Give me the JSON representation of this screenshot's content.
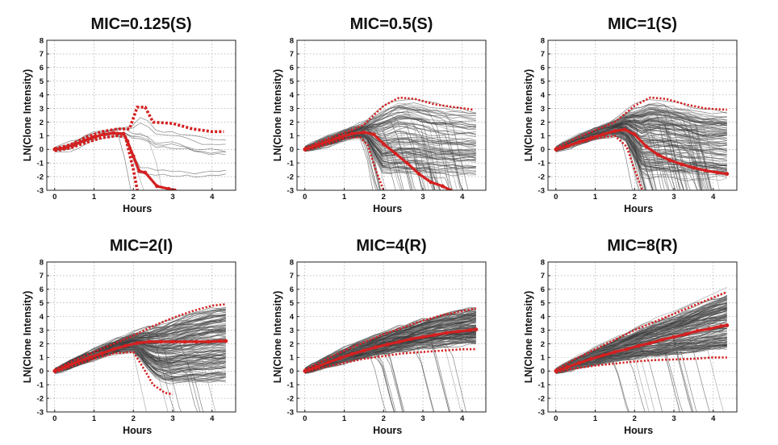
{
  "chart_data": [
    {
      "type": "line",
      "title": "MIC=0.125(S)",
      "xlabel": "Hours",
      "ylabel": "LN(Clone Intensity)",
      "xlim": [
        -0.2,
        4.6
      ],
      "ylim": [
        -3,
        8
      ],
      "xticks": [
        "0",
        "1",
        "2",
        "3",
        "4"
      ],
      "yticks": [
        "-3",
        "-2",
        "-1",
        "0",
        "1",
        "2",
        "3",
        "4",
        "5",
        "6",
        "7",
        "8"
      ],
      "grid": true,
      "clone_count": 10,
      "mean": {
        "x": [
          0,
          0.25,
          0.5,
          0.75,
          1.0,
          1.25,
          1.5,
          1.75,
          1.85,
          2.0,
          2.15,
          2.3,
          2.6,
          2.9,
          3.05
        ],
        "y": [
          0,
          0.1,
          0.35,
          0.65,
          0.9,
          1.1,
          1.2,
          1.15,
          0.6,
          -0.5,
          -1.6,
          -1.7,
          -2.7,
          -2.9,
          -3.0
        ]
      },
      "upper_envelope": {
        "x": [
          0,
          0.4,
          0.8,
          1.2,
          1.6,
          1.9,
          2.1,
          2.3,
          2.5,
          3.0,
          3.5,
          4.0,
          4.3
        ],
        "y": [
          0.05,
          0.35,
          0.9,
          1.3,
          1.5,
          1.5,
          3.1,
          3.1,
          2.0,
          1.9,
          1.5,
          1.3,
          1.3
        ]
      },
      "lower_envelope": {
        "x": [
          0,
          0.4,
          0.8,
          1.2,
          1.6,
          1.8,
          2.0,
          2.1
        ],
        "y": [
          -0.1,
          0.1,
          0.5,
          0.85,
          1.0,
          0.9,
          -1.5,
          -3.0
        ]
      }
    },
    {
      "type": "line",
      "title": "MIC=0.5(S)",
      "xlabel": "Hours",
      "ylabel": "LN(Clone Intensity)",
      "xlim": [
        -0.2,
        4.6
      ],
      "ylim": [
        -3,
        8
      ],
      "xticks": [
        "0",
        "1",
        "2",
        "3",
        "4"
      ],
      "yticks": [
        "-3",
        "-2",
        "-1",
        "0",
        "1",
        "2",
        "3",
        "4",
        "5",
        "6",
        "7",
        "8"
      ],
      "grid": true,
      "clone_count": 120,
      "mean": {
        "x": [
          0,
          0.3,
          0.6,
          0.9,
          1.2,
          1.5,
          1.75,
          2.0,
          2.3,
          2.6,
          2.9,
          3.2,
          3.5,
          3.7
        ],
        "y": [
          0,
          0.3,
          0.6,
          0.9,
          1.15,
          1.25,
          1.1,
          0.4,
          -0.3,
          -1.0,
          -1.8,
          -2.4,
          -2.7,
          -3.0
        ]
      },
      "upper_envelope": {
        "x": [
          0,
          0.5,
          1.0,
          1.5,
          2.0,
          2.4,
          2.8,
          3.3,
          3.8,
          4.3
        ],
        "y": [
          0.1,
          0.7,
          1.2,
          1.8,
          3.2,
          3.8,
          3.7,
          3.3,
          3.1,
          2.9
        ]
      },
      "lower_envelope": {
        "x": [
          0,
          0.5,
          1.0,
          1.4,
          1.6,
          1.8,
          2.0
        ],
        "y": [
          -0.1,
          0.3,
          0.8,
          0.9,
          0.3,
          -1.5,
          -3.0
        ]
      }
    },
    {
      "type": "line",
      "title": "MIC=1(S)",
      "xlabel": "Hours",
      "ylabel": "LN(Clone Intensity)",
      "xlim": [
        -0.2,
        4.6
      ],
      "ylim": [
        -3,
        8
      ],
      "xticks": [
        "0",
        "1",
        "2",
        "3",
        "4"
      ],
      "yticks": [
        "-3",
        "-2",
        "-1",
        "0",
        "1",
        "2",
        "3",
        "4",
        "5",
        "6",
        "7",
        "8"
      ],
      "grid": true,
      "clone_count": 160,
      "mean": {
        "x": [
          0,
          0.3,
          0.6,
          0.9,
          1.2,
          1.5,
          1.75,
          2.0,
          2.3,
          2.6,
          2.9,
          3.2,
          3.5,
          3.8,
          4.1,
          4.35
        ],
        "y": [
          0,
          0.25,
          0.55,
          0.85,
          1.1,
          1.35,
          1.45,
          1.1,
          0.2,
          -0.4,
          -0.8,
          -1.1,
          -1.35,
          -1.55,
          -1.7,
          -1.8
        ]
      },
      "upper_envelope": {
        "x": [
          0,
          0.5,
          1.0,
          1.5,
          2.0,
          2.4,
          2.8,
          3.3,
          3.8,
          4.35
        ],
        "y": [
          0.1,
          0.8,
          1.4,
          2.0,
          3.2,
          3.8,
          3.7,
          3.3,
          3.0,
          2.9
        ]
      },
      "lower_envelope": {
        "x": [
          0,
          0.5,
          1.0,
          1.5,
          1.8,
          2.0,
          2.2
        ],
        "y": [
          -0.1,
          0.4,
          0.8,
          1.0,
          0.2,
          -1.5,
          -3.0
        ]
      }
    },
    {
      "type": "line",
      "title": "MIC=2(I)",
      "xlabel": "Hours",
      "ylabel": "LN(Clone Intensity)",
      "xlim": [
        -0.2,
        4.6
      ],
      "ylim": [
        -3,
        8
      ],
      "xticks": [
        "0",
        "1",
        "2",
        "3",
        "4"
      ],
      "yticks": [
        "-3",
        "-2",
        "-1",
        "0",
        "1",
        "2",
        "3",
        "4",
        "5",
        "6",
        "7",
        "8"
      ],
      "grid": true,
      "clone_count": 160,
      "mean": {
        "x": [
          0,
          0.3,
          0.6,
          0.9,
          1.2,
          1.5,
          1.8,
          2.1,
          2.4,
          2.7,
          3.0,
          3.3,
          3.6,
          3.9,
          4.2,
          4.35
        ],
        "y": [
          0,
          0.35,
          0.7,
          1.0,
          1.3,
          1.6,
          1.85,
          2.05,
          2.15,
          2.15,
          2.15,
          2.15,
          2.15,
          2.15,
          2.2,
          2.2
        ]
      },
      "upper_envelope": {
        "x": [
          0,
          0.5,
          1.0,
          1.5,
          2.0,
          2.5,
          3.0,
          3.5,
          4.0,
          4.35
        ],
        "y": [
          0.1,
          0.8,
          1.4,
          2.0,
          2.6,
          3.3,
          3.9,
          4.4,
          4.8,
          4.9
        ]
      },
      "lower_envelope": {
        "x": [
          0,
          0.5,
          1.0,
          1.5,
          2.0,
          2.3,
          2.5,
          2.8,
          3.0
        ],
        "y": [
          -0.1,
          0.4,
          0.9,
          1.3,
          1.4,
          0.0,
          -1.0,
          -1.6,
          -1.7
        ]
      }
    },
    {
      "type": "line",
      "title": "MIC=4(R)",
      "xlabel": "Hours",
      "ylabel": "LN(Clone Intensity)",
      "xlim": [
        -0.2,
        4.6
      ],
      "ylim": [
        -3,
        8
      ],
      "xticks": [
        "0",
        "1",
        "2",
        "3",
        "4"
      ],
      "yticks": [
        "-3",
        "-2",
        "-1",
        "0",
        "1",
        "2",
        "3",
        "4",
        "5",
        "6",
        "7",
        "8"
      ],
      "grid": true,
      "clone_count": 180,
      "mean": {
        "x": [
          0,
          0.3,
          0.6,
          0.9,
          1.2,
          1.5,
          1.8,
          2.1,
          2.4,
          2.7,
          3.0,
          3.3,
          3.6,
          3.9,
          4.2,
          4.35
        ],
        "y": [
          0,
          0.3,
          0.65,
          0.95,
          1.25,
          1.5,
          1.75,
          1.95,
          2.15,
          2.35,
          2.5,
          2.65,
          2.8,
          2.9,
          3.0,
          3.05
        ]
      },
      "upper_envelope": {
        "x": [
          0,
          0.5,
          1.0,
          1.5,
          2.0,
          2.5,
          3.0,
          3.5,
          4.0,
          4.35
        ],
        "y": [
          0.1,
          0.8,
          1.5,
          2.1,
          2.7,
          3.2,
          3.7,
          4.1,
          4.4,
          4.6
        ]
      },
      "lower_envelope": {
        "x": [
          0,
          0.5,
          1.0,
          1.5,
          2.0,
          2.5,
          3.0,
          3.5,
          4.0,
          4.35
        ],
        "y": [
          -0.1,
          0.3,
          0.6,
          0.9,
          1.1,
          1.3,
          1.4,
          1.5,
          1.6,
          1.6
        ]
      }
    },
    {
      "type": "line",
      "title": "MIC=8(R)",
      "xlabel": "Hours",
      "ylabel": "LN(Clone Intensity)",
      "xlim": [
        -0.2,
        4.6
      ],
      "ylim": [
        -3,
        8
      ],
      "xticks": [
        "0",
        "1",
        "2",
        "3",
        "4"
      ],
      "yticks": [
        "-3",
        "-2",
        "-1",
        "0",
        "1",
        "2",
        "3",
        "4",
        "5",
        "6",
        "7",
        "8"
      ],
      "grid": true,
      "clone_count": 180,
      "mean": {
        "x": [
          0,
          0.3,
          0.6,
          0.9,
          1.2,
          1.5,
          1.8,
          2.1,
          2.4,
          2.7,
          3.0,
          3.3,
          3.6,
          3.9,
          4.2,
          4.35
        ],
        "y": [
          0,
          0.3,
          0.6,
          0.9,
          1.15,
          1.4,
          1.6,
          1.85,
          2.05,
          2.3,
          2.5,
          2.7,
          2.95,
          3.1,
          3.3,
          3.35
        ]
      },
      "upper_envelope": {
        "x": [
          0,
          0.5,
          1.0,
          1.5,
          2.0,
          2.5,
          3.0,
          3.5,
          4.0,
          4.35
        ],
        "y": [
          0.1,
          0.9,
          1.6,
          2.3,
          3.0,
          3.6,
          4.2,
          4.8,
          5.4,
          5.8
        ]
      },
      "lower_envelope": {
        "x": [
          0,
          0.5,
          1.0,
          1.5,
          2.0,
          2.5,
          3.0,
          3.5,
          4.0,
          4.35
        ],
        "y": [
          -0.1,
          0.2,
          0.4,
          0.55,
          0.7,
          0.8,
          0.85,
          0.9,
          1.0,
          1.0
        ]
      }
    }
  ],
  "colors": {
    "mean": "#d42020",
    "clones": "#3d3d3d",
    "grid": "#9a9a9a"
  }
}
